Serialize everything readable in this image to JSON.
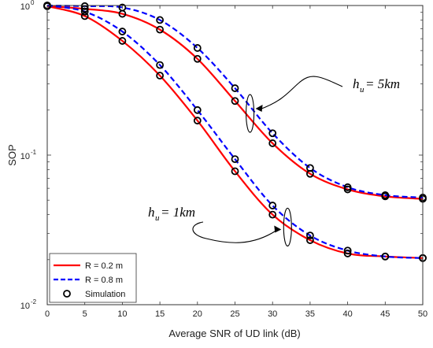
{
  "chart_data": {
    "type": "line",
    "xlabel": "Average SNR of UD link (dB)",
    "ylabel": "SOP",
    "xlim": [
      0,
      50
    ],
    "ylim": [
      0.01,
      1
    ],
    "yscale": "log",
    "x_ticks": [
      "0",
      "5",
      "10",
      "15",
      "20",
      "25",
      "30",
      "35",
      "40",
      "45",
      "50"
    ],
    "y_ticks": [
      {
        "base": "10",
        "exp": "0"
      },
      {
        "base": "10",
        "exp": "-1"
      },
      {
        "base": "10",
        "exp": "-2"
      }
    ],
    "grid": false,
    "legend_position": "bottom-left",
    "legend": [
      {
        "label": "R = 0.2 m",
        "style": "solid",
        "color": "#ff0000"
      },
      {
        "label": "R = 0.8 m",
        "style": "dashed",
        "color": "#0000ff"
      },
      {
        "label": "Simulation",
        "style": "marker",
        "color": "#000000"
      }
    ],
    "x": [
      0,
      5,
      10,
      15,
      20,
      25,
      30,
      35,
      40,
      45,
      50
    ],
    "series": [
      {
        "group": "h_u = 5km",
        "legend": "R = 0.2 m",
        "color": "#ff0000",
        "style": "solid",
        "values": [
          0.99,
          0.95,
          0.88,
          0.69,
          0.44,
          0.23,
          0.12,
          0.075,
          0.059,
          0.053,
          0.051
        ]
      },
      {
        "group": "h_u = 5km",
        "legend": "R = 0.8 m",
        "color": "#0000ff",
        "style": "dashed",
        "values": [
          1.0,
          0.99,
          0.97,
          0.8,
          0.52,
          0.28,
          0.14,
          0.082,
          0.061,
          0.054,
          0.052
        ]
      },
      {
        "group": "h_u = 1km",
        "legend": "R = 0.2 m",
        "color": "#ff0000",
        "style": "solid",
        "values": [
          0.99,
          0.85,
          0.58,
          0.34,
          0.17,
          0.078,
          0.04,
          0.027,
          0.022,
          0.021,
          0.0205
        ]
      },
      {
        "group": "h_u = 1km",
        "legend": "R = 0.8 m",
        "color": "#0000ff",
        "style": "dashed",
        "values": [
          1.0,
          0.91,
          0.67,
          0.4,
          0.2,
          0.094,
          0.046,
          0.029,
          0.023,
          0.021,
          0.0205
        ]
      }
    ],
    "annotations": [
      {
        "main": "h",
        "sub": "u",
        "rest": " = 5km",
        "arrow_to_x": 27,
        "arrow_to_y": 0.19
      },
      {
        "main": "h",
        "sub": "u",
        "rest": " = 1km",
        "arrow_to_x": 32,
        "arrow_to_y": 0.033
      }
    ]
  }
}
